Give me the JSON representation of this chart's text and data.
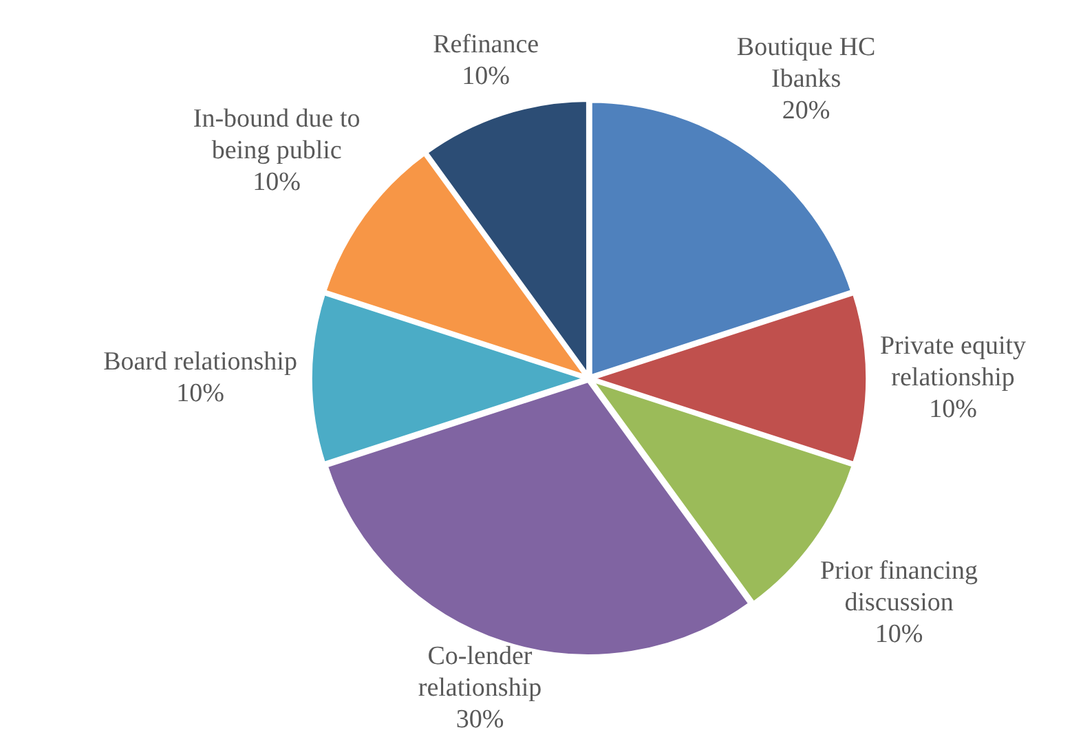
{
  "chart_data": {
    "type": "pie",
    "categories": [
      "Boutique HC Ibanks",
      "Private equity relationship",
      "Prior financing discussion",
      "Co-lender relationship",
      "Board relationship",
      "In-bound due to being public",
      "Refinance"
    ],
    "values": [
      20,
      10,
      10,
      30,
      10,
      10,
      10
    ],
    "value_labels": [
      "20%",
      "10%",
      "10%",
      "30%",
      "10%",
      "10%",
      "10%"
    ],
    "colors": [
      "#4f81bd",
      "#c0504d",
      "#9bbb59",
      "#8064a2",
      "#4bacc6",
      "#f79646",
      "#2c4d75"
    ],
    "legend": false
  }
}
